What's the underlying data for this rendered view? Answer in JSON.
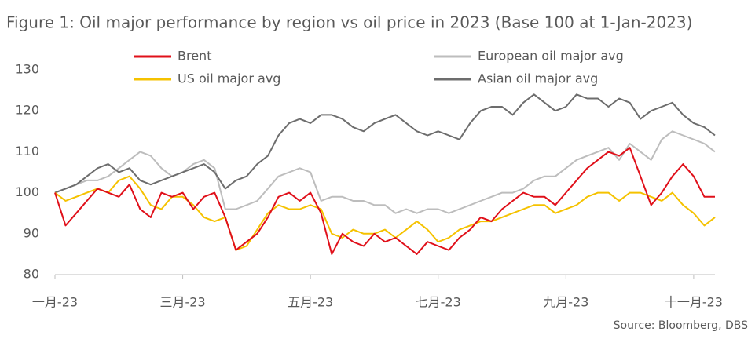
{
  "chart_data": {
    "type": "line",
    "title": "Figure 1: Oil major performance by region vs oil price in 2023 (Base 100 at 1-Jan-2023)",
    "source": "Source: Bloomberg, DBS",
    "categories": [
      "一月-23",
      null,
      null,
      null,
      null,
      null,
      null,
      null,
      null,
      null,
      null,
      null,
      "三月-23",
      null,
      null,
      null,
      null,
      null,
      null,
      null,
      null,
      null,
      null,
      null,
      "五月-23",
      null,
      null,
      null,
      null,
      null,
      null,
      null,
      null,
      null,
      null,
      null,
      "七月-23",
      null,
      null,
      null,
      null,
      null,
      null,
      null,
      null,
      null,
      null,
      null,
      "九月-23",
      null,
      null,
      null,
      null,
      null,
      null,
      null,
      null,
      null,
      null,
      null,
      "十一月-23",
      null,
      null
    ],
    "ylim": [
      80,
      130
    ],
    "yticks": [
      80,
      90,
      100,
      110,
      120,
      130
    ],
    "grid": false,
    "series": [
      {
        "name": "Brent",
        "color": "#e0101a",
        "values": [
          100,
          92,
          95,
          98,
          101,
          100,
          99,
          102,
          96,
          94,
          100,
          99,
          100,
          96,
          99,
          100,
          94,
          86,
          88,
          90,
          94,
          99,
          100,
          98,
          100,
          95,
          85,
          90,
          88,
          87,
          90,
          88,
          89,
          87,
          85,
          88,
          87,
          86,
          89,
          91,
          94,
          93,
          96,
          98,
          100,
          99,
          99,
          97,
          100,
          103,
          106,
          108,
          110,
          109,
          111,
          104,
          97,
          100,
          104,
          107,
          104,
          99,
          99
        ]
      },
      {
        "name": "European oil major avg",
        "color": "#bdbdbd",
        "values": [
          100,
          101,
          102,
          103,
          103,
          104,
          106,
          108,
          110,
          109,
          106,
          104,
          105,
          107,
          108,
          106,
          96,
          96,
          97,
          98,
          101,
          104,
          105,
          106,
          105,
          98,
          99,
          99,
          98,
          98,
          97,
          97,
          95,
          96,
          95,
          96,
          96,
          95,
          96,
          97,
          98,
          99,
          100,
          100,
          101,
          103,
          104,
          104,
          106,
          108,
          109,
          110,
          111,
          108,
          112,
          110,
          108,
          113,
          115,
          114,
          113,
          112,
          110
        ]
      },
      {
        "name": "US oil major avg",
        "color": "#f5c200",
        "values": [
          100,
          98,
          99,
          100,
          101,
          100,
          103,
          104,
          101,
          97,
          96,
          99,
          99,
          97,
          94,
          93,
          94,
          86,
          87,
          91,
          95,
          97,
          96,
          96,
          97,
          96,
          90,
          89,
          91,
          90,
          90,
          91,
          89,
          91,
          93,
          91,
          88,
          89,
          91,
          92,
          93,
          93,
          94,
          95,
          96,
          97,
          97,
          95,
          96,
          97,
          99,
          100,
          100,
          98,
          100,
          100,
          99,
          98,
          100,
          97,
          95,
          92,
          94
        ]
      },
      {
        "name": "Asian oil major avg",
        "color": "#6d6d6d",
        "values": [
          100,
          101,
          102,
          104,
          106,
          107,
          105,
          106,
          103,
          102,
          103,
          104,
          105,
          106,
          107,
          105,
          101,
          103,
          104,
          107,
          109,
          114,
          117,
          118,
          117,
          119,
          119,
          118,
          116,
          115,
          117,
          118,
          119,
          117,
          115,
          114,
          115,
          114,
          113,
          117,
          120,
          121,
          121,
          119,
          122,
          124,
          122,
          120,
          121,
          124,
          123,
          123,
          121,
          123,
          122,
          118,
          120,
          121,
          122,
          119,
          117,
          116,
          114
        ]
      }
    ]
  }
}
